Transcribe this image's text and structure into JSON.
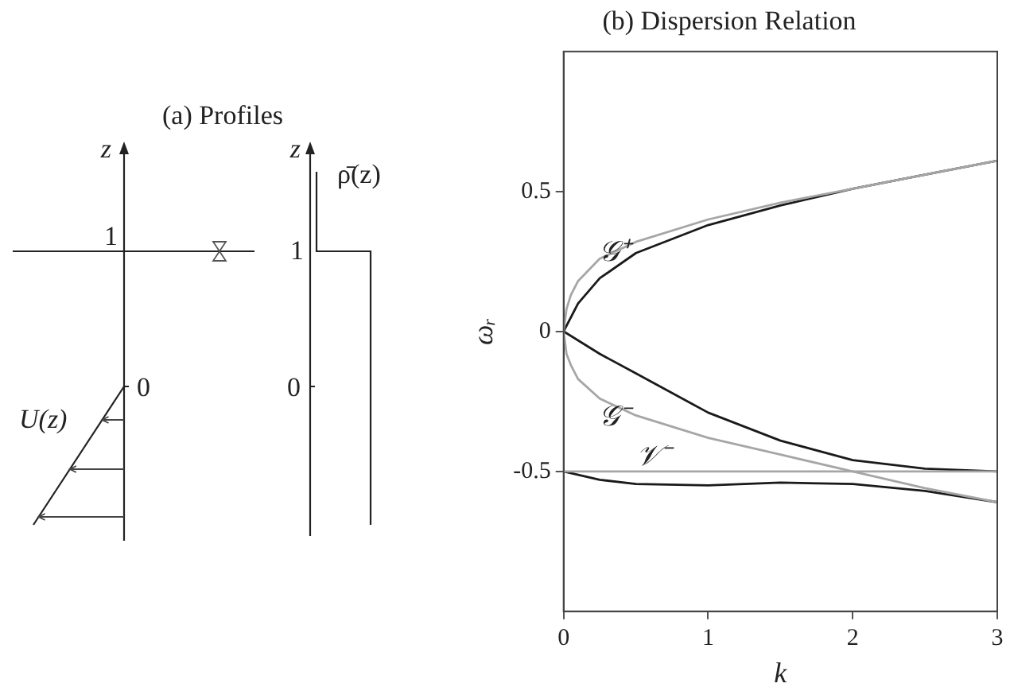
{
  "chart_data": [
    {
      "type": "other",
      "title": "(a) Profiles",
      "annotations": [
        "z",
        "1",
        "0",
        "U(z)",
        "z",
        "1",
        "0",
        "ρ̄(z)"
      ]
    },
    {
      "type": "line",
      "title": "(b) Dispersion Relation",
      "xlabel": "k",
      "ylabel": "ωᵣ",
      "xlim": [
        0,
        3
      ],
      "xticks": [
        0,
        1,
        2,
        3
      ],
      "ylim": [
        -1,
        1
      ],
      "yticks": [
        -0.5,
        0,
        0.5
      ],
      "series": [
        {
          "color": "#a6a6a6",
          "x": [
            3,
            2.5,
            2,
            1.5,
            1,
            0.5,
            0.25,
            0.1,
            0.05,
            0.02,
            0,
            0.02,
            0.05,
            0.1,
            0.25,
            0.5,
            1,
            1.5,
            2,
            2.5,
            3
          ],
          "values": [
            0.61,
            0.56,
            0.51,
            0.46,
            0.4,
            0.32,
            0.26,
            0.18,
            0.13,
            0.08,
            0,
            -0.08,
            -0.12,
            -0.17,
            -0.24,
            -0.3,
            -0.38,
            -0.44,
            -0.5,
            -0.56,
            -0.61
          ]
        },
        {
          "color": "#a6a6a6",
          "x": [
            0,
            3
          ],
          "values": [
            -0.5,
            -0.5
          ]
        },
        {
          "color": "#1a1a1a",
          "x": [
            3,
            2.5,
            2,
            1.5,
            1,
            0.5,
            0.25,
            0.1,
            0,
            0.25,
            0.5,
            1,
            1.5,
            2,
            2.5,
            3
          ],
          "values": [
            0.61,
            0.56,
            0.51,
            0.45,
            0.38,
            0.28,
            0.19,
            0.1,
            0,
            -0.08,
            -0.15,
            -0.29,
            -0.39,
            -0.46,
            -0.49,
            -0.5
          ]
        },
        {
          "color": "#1a1a1a",
          "x": [
            0,
            0.25,
            0.5,
            1,
            1.5,
            2,
            2.5,
            3
          ],
          "values": [
            -0.5,
            -0.53,
            -0.545,
            -0.55,
            -0.54,
            -0.545,
            -0.57,
            -0.61
          ]
        }
      ],
      "annotations": [
        "𝒢⁺",
        "𝒢⁻",
        "𝒱⁻"
      ]
    }
  ]
}
